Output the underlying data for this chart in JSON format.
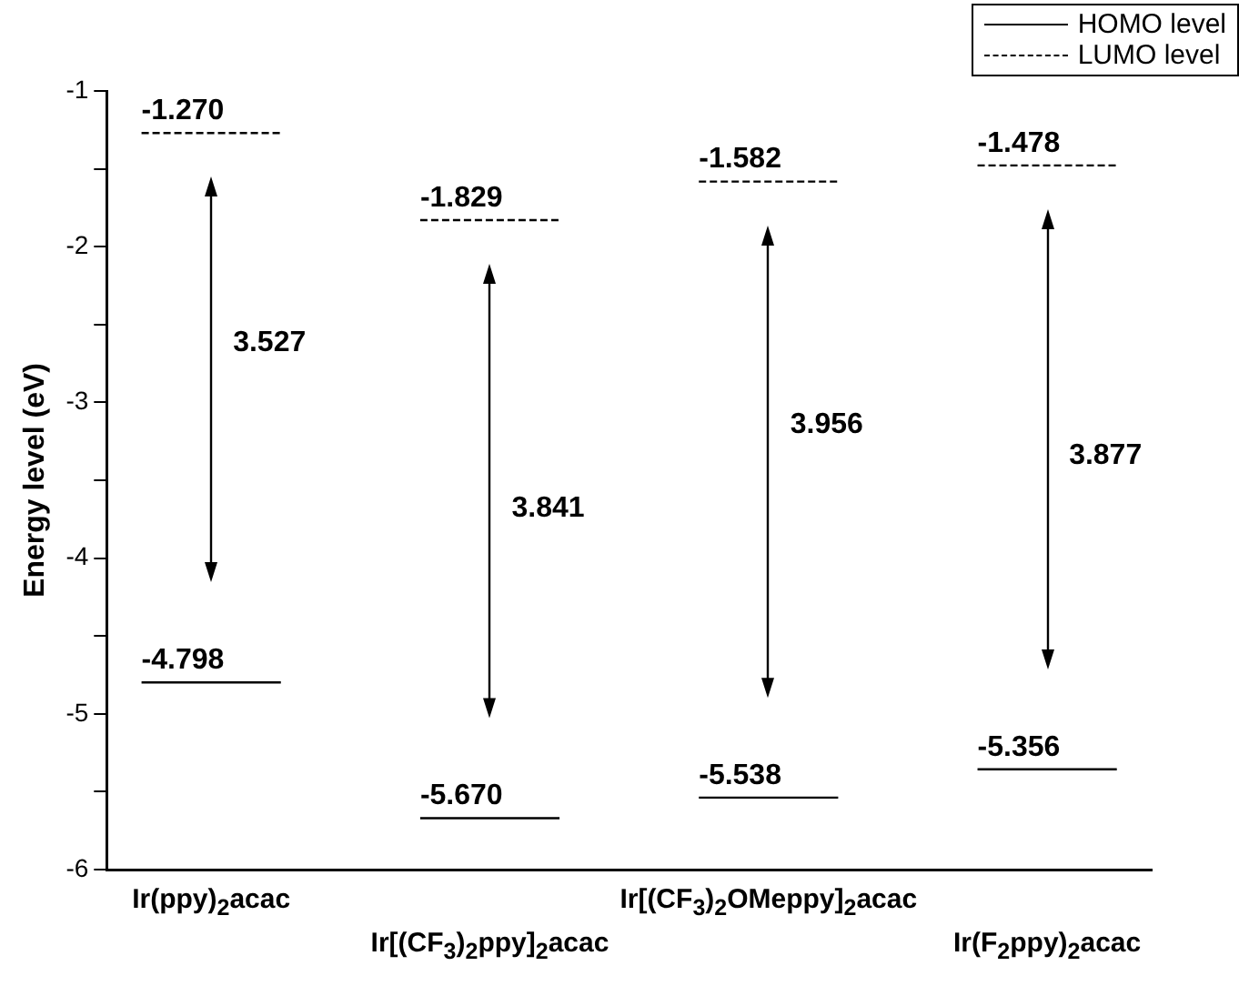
{
  "chart_data": {
    "type": "line",
    "ylabel": "Energy level (eV)",
    "categories": [
      null,
      "Ir(ppy)$_{2}$acac",
      null,
      null,
      null,
      "Ir[(CF$_{3}$)$_{2}$ppy]$_{2}$acac",
      null,
      null,
      null,
      "Ir[(CF$_{3}$)$_{2}$OMeppy]$_{2}$acac",
      null,
      null,
      null,
      "Ir(F$_{2}$ppy)$_{2}$acac",
      null
    ],
    "series": [
      {
        "name": "HOMO level",
        "color": "#000000",
        "line_style": "solid",
        "values": [
          -4.798,
          -4.798,
          -4.798,
          null,
          -5.67,
          -5.67,
          -5.67,
          null,
          -5.538,
          -5.538,
          -5.538,
          null,
          -5.356,
          -5.356,
          -5.356
        ],
        "value_labels": [
          "-4.798",
          null,
          null,
          null,
          "-5.670",
          null,
          null,
          null,
          "-5.538",
          null,
          null,
          null,
          "-5.356",
          null,
          null
        ]
      },
      {
        "name": "LUMO level",
        "color": "#000000",
        "line_style": "dashed",
        "values": [
          -1.27,
          -1.27,
          -1.27,
          null,
          -1.829,
          -1.829,
          -1.829,
          null,
          -1.582,
          -1.582,
          -1.582,
          null,
          -1.478,
          -1.478,
          -1.478
        ],
        "value_labels": [
          "-1.270",
          null,
          null,
          null,
          "-1.829",
          null,
          null,
          null,
          "-1.582",
          null,
          null,
          null,
          "-1.478",
          null,
          null
        ]
      }
    ],
    "ylim": [
      -6,
      -1
    ],
    "yticks": [
      -6,
      {
        "value": -5.5,
        "label": null
      },
      -5,
      {
        "value": -4.5,
        "label": null
      },
      -4,
      {
        "value": -3.5,
        "label": null
      },
      -3,
      {
        "value": -2.5,
        "label": null
      },
      -2,
      {
        "value": -1.5,
        "label": null
      },
      -1
    ],
    "annotations": [
      "3.527",
      "3.841",
      "3.956",
      "3.877"
    ],
    "legend": "top right",
    "grid": false,
    "marker": "none"
  }
}
